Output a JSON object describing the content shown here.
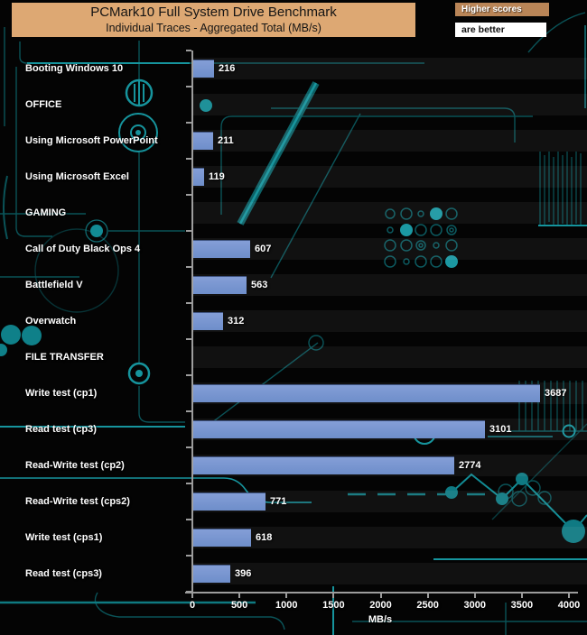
{
  "banner": {
    "title": "PCMark10 Full System Drive Benchmark",
    "subtitle": "Individual Traces - Aggregated Total (MB/s)"
  },
  "legend": {
    "higher_scores": "Higher scores",
    "are_better": "are better"
  },
  "chart_data": {
    "type": "bar",
    "orientation": "horizontal",
    "title": "PCMark10 Full System Drive Benchmark",
    "subtitle": "Individual Traces - Aggregated Total (MB/s)",
    "xlabel": "MB/s",
    "xlim": [
      0,
      4000
    ],
    "x_ticks": [
      0,
      500,
      1000,
      1500,
      2000,
      2500,
      3000,
      3500,
      4000
    ],
    "grid": false,
    "legend_position": "top-right",
    "bar_color": "#7492cf",
    "rows": [
      {
        "kind": "bar",
        "label": "Booting Windows 10",
        "value": 216
      },
      {
        "kind": "header",
        "label": "OFFICE"
      },
      {
        "kind": "bar",
        "label": "Using Microsoft PowerPoint",
        "value": 211
      },
      {
        "kind": "bar",
        "label": "Using Microsoft Excel",
        "value": 119
      },
      {
        "kind": "header",
        "label": "GAMING"
      },
      {
        "kind": "bar",
        "label": "Call of Duty Black Ops 4",
        "value": 607
      },
      {
        "kind": "bar",
        "label": "Battlefield V",
        "value": 563
      },
      {
        "kind": "bar",
        "label": "Overwatch",
        "value": 312
      },
      {
        "kind": "header",
        "label": "FILE TRANSFER"
      },
      {
        "kind": "bar",
        "label": "Write test (cp1)",
        "value": 3687
      },
      {
        "kind": "bar",
        "label": "Read test (cp3)",
        "value": 3101
      },
      {
        "kind": "bar",
        "label": "Read-Write test (cp2)",
        "value": 2774
      },
      {
        "kind": "bar",
        "label": "Read-Write test (cps2)",
        "value": 771
      },
      {
        "kind": "bar",
        "label": "Write test (cps1)",
        "value": 618
      },
      {
        "kind": "bar",
        "label": "Read test (cps3)",
        "value": 396
      }
    ]
  },
  "colors": {
    "background": "#040404",
    "banner_bg": "#dda873",
    "badge_bg": "#b98557",
    "bar": "#7492cf",
    "axis": "#9c9c9c",
    "circuit_teal": "#0d6a70",
    "circuit_bright": "#16949d",
    "text": "#ffffff"
  }
}
